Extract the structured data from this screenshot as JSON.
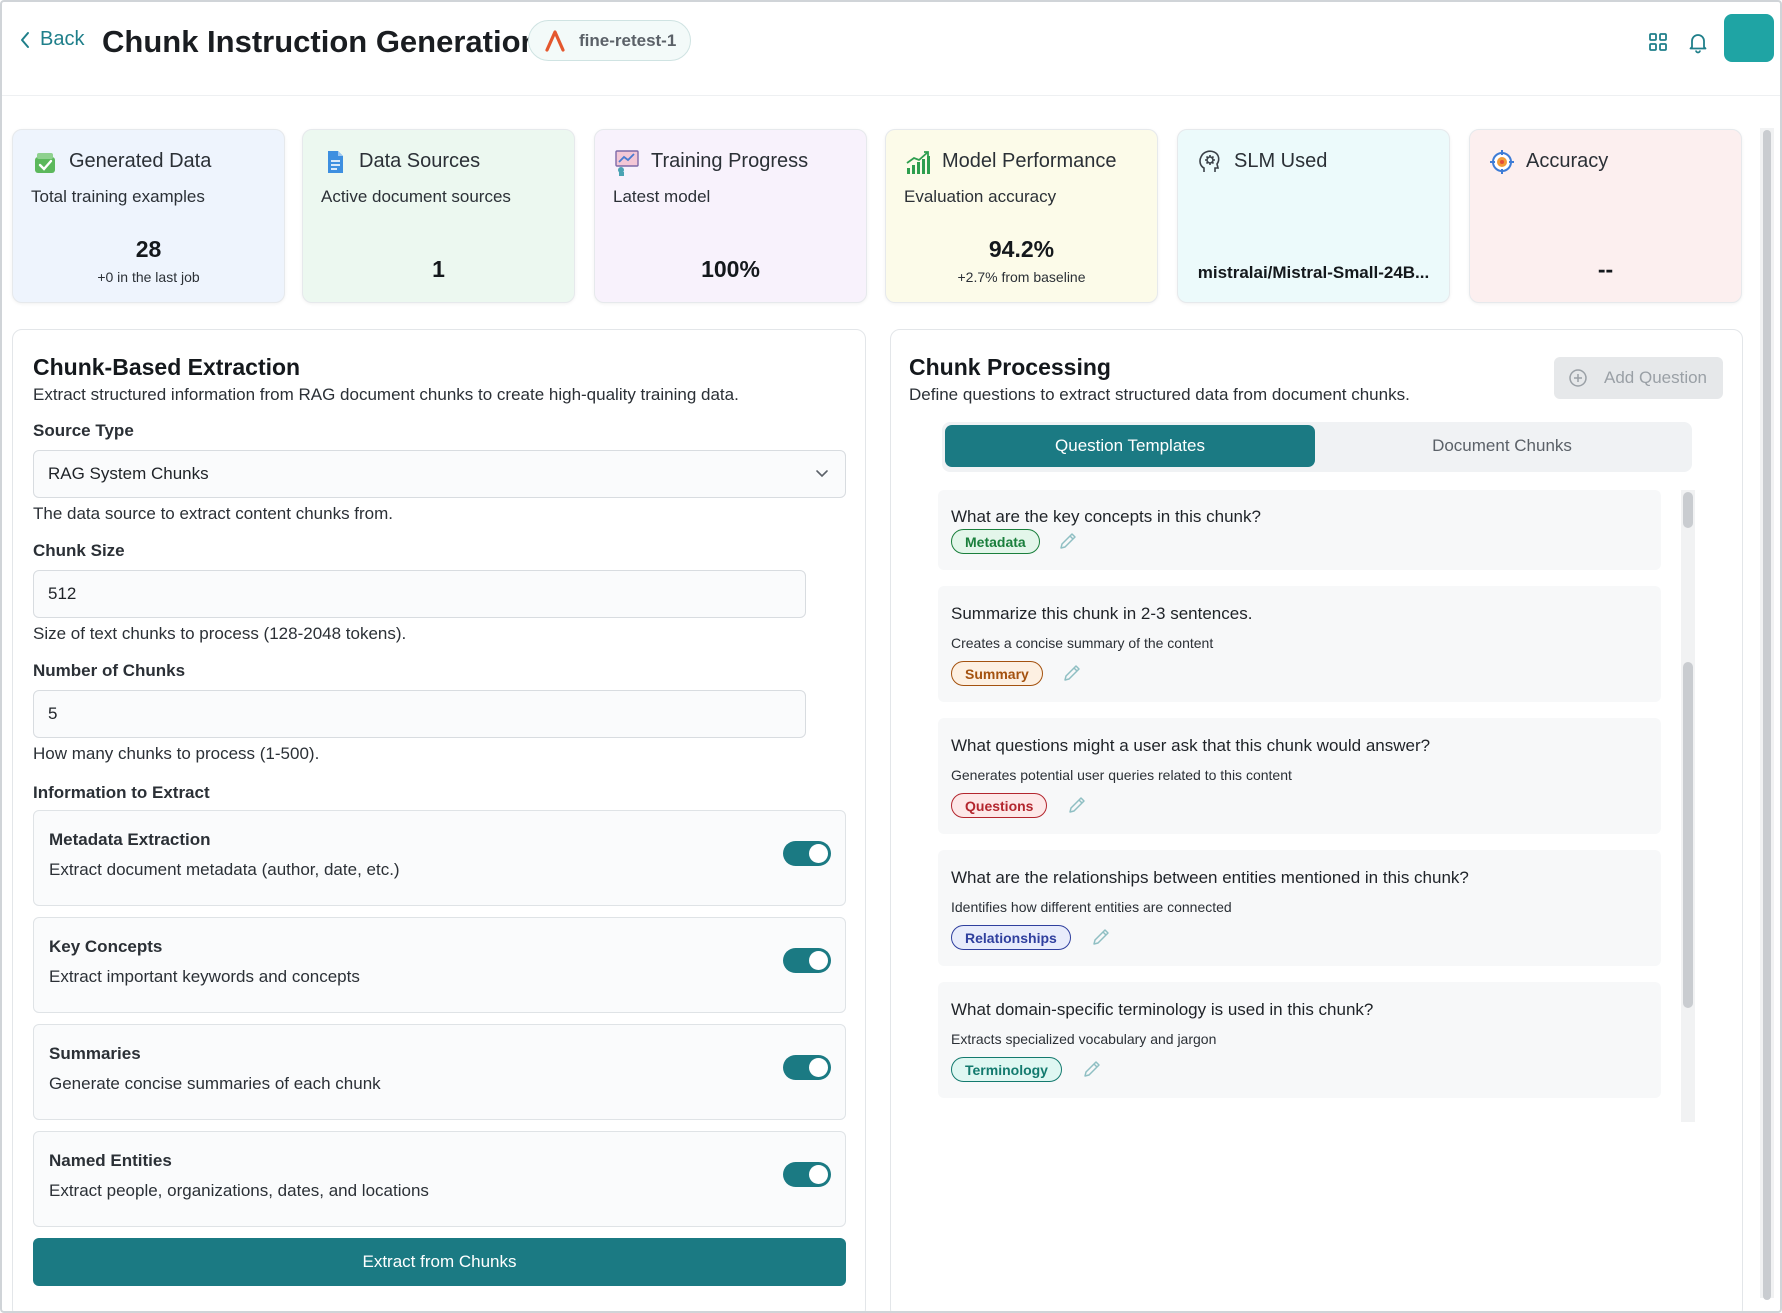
{
  "header": {
    "back_label": "Back",
    "title": "Chunk Instruction Generation",
    "project": "fine-retest-1"
  },
  "stats": [
    {
      "title": "Generated Data",
      "subtitle": "Total training examples",
      "value": "28",
      "note": "+0 in the last job",
      "bg": "#eef4fd",
      "icon": "database-check-icon"
    },
    {
      "title": "Data Sources",
      "subtitle": "Active document sources",
      "value": "1",
      "note": "",
      "bg": "#ecf8f0",
      "icon": "document-icon"
    },
    {
      "title": "Training Progress",
      "subtitle": "Latest model",
      "value": "100%",
      "note": "",
      "bg": "#f8f2fc",
      "icon": "presentation-icon"
    },
    {
      "title": "Model Performance",
      "subtitle": "Evaluation accuracy",
      "value": "94.2%",
      "note": "+2.7% from baseline",
      "bg": "#fcfbe9",
      "icon": "chart-growth-icon"
    },
    {
      "title": "SLM Used",
      "subtitle": "",
      "value": "mistralai/Mistral-Small-24B...",
      "note": "",
      "bg": "#ecfafb",
      "icon": "brain-gear-icon"
    },
    {
      "title": "Accuracy",
      "subtitle": "",
      "value": "--",
      "note": "",
      "bg": "#fcefef",
      "icon": "target-icon"
    }
  ],
  "left": {
    "title": "Chunk-Based Extraction",
    "description": "Extract structured information from RAG document chunks to create high-quality training data.",
    "source_type_label": "Source Type",
    "source_type_value": "RAG System Chunks",
    "source_type_help": "The data source to extract content chunks from.",
    "chunk_size_label": "Chunk Size",
    "chunk_size_value": "512",
    "chunk_size_help": "Size of text chunks to process (128-2048 tokens).",
    "num_chunks_label": "Number of Chunks",
    "num_chunks_value": "5",
    "num_chunks_help": "How many chunks to process (1-500).",
    "extract_label": "Information to Extract",
    "options": [
      {
        "title": "Metadata Extraction",
        "desc": "Extract document metadata (author, date, etc.)",
        "enabled": true
      },
      {
        "title": "Key Concepts",
        "desc": "Extract important keywords and concepts",
        "enabled": true
      },
      {
        "title": "Summaries",
        "desc": "Generate concise summaries of each chunk",
        "enabled": true
      },
      {
        "title": "Named Entities",
        "desc": "Extract people, organizations, dates, and locations",
        "enabled": true
      }
    ],
    "extract_button": "Extract from Chunks"
  },
  "right": {
    "title": "Chunk Processing",
    "description": "Define questions to extract structured data from document chunks.",
    "add_question": "Add Question",
    "tabs": [
      "Question Templates",
      "Document Chunks"
    ],
    "active_tab": "Question Templates",
    "questions": [
      {
        "text": "What are the key concepts in this chunk?",
        "desc": "",
        "tag": "Metadata",
        "tag_color": "#1a7f3c",
        "tag_bg": "#e3f6ea"
      },
      {
        "text": "Summarize this chunk in 2-3 sentences.",
        "desc": "Creates a concise summary of the content",
        "tag": "Summary",
        "tag_color": "#a4520f",
        "tag_bg": "#fdf0e2"
      },
      {
        "text": "What questions might a user ask that this chunk would answer?",
        "desc": "Generates potential user queries related to this content",
        "tag": "Questions",
        "tag_color": "#b3262e",
        "tag_bg": "#fde8e8"
      },
      {
        "text": "What are the relationships between entities mentioned in this chunk?",
        "desc": "Identifies how different entities are connected",
        "tag": "Relationships",
        "tag_color": "#2f3f9e",
        "tag_bg": "#e8ecfb"
      },
      {
        "text": "What domain-specific terminology is used in this chunk?",
        "desc": "Extracts specialized vocabulary and jargon",
        "tag": "Terminology",
        "tag_color": "#137a6e",
        "tag_bg": "#dff7f2"
      }
    ]
  }
}
